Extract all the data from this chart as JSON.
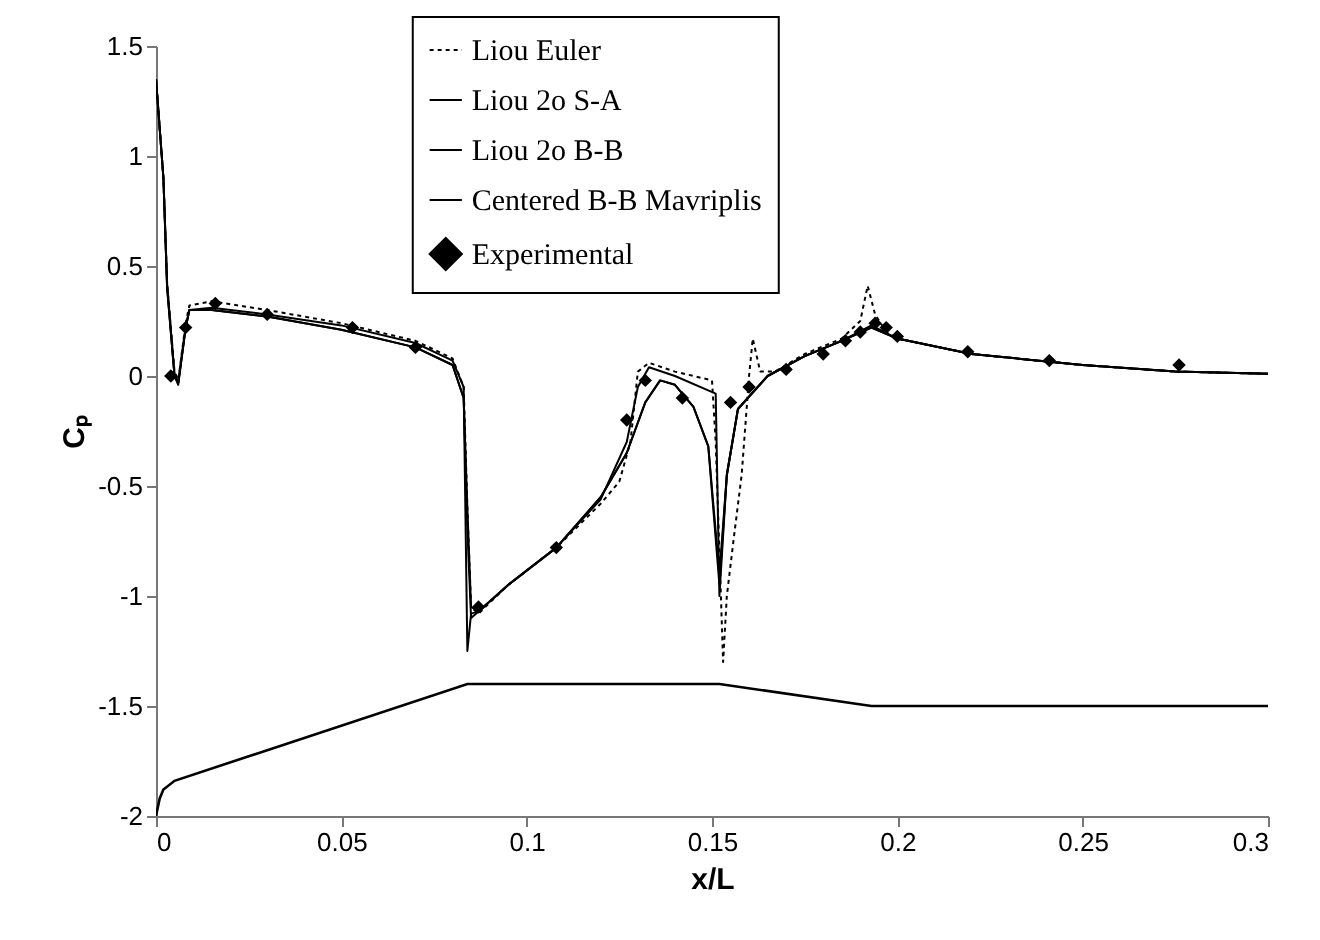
{
  "chart_data": {
    "type": "line",
    "xlabel": "x/L",
    "ylabel": "Cₚ",
    "xlim": [
      0,
      0.3
    ],
    "ylim": [
      -2,
      1.5
    ],
    "xticks": [
      0,
      0.05,
      0.1,
      0.15,
      0.2,
      0.25,
      0.3
    ],
    "yticks": [
      -2,
      -1.5,
      -1,
      -0.5,
      0,
      0.5,
      1,
      1.5
    ],
    "legend": "top",
    "grid": false,
    "series": [
      {
        "name": "Liou Euler",
        "color": "#000000",
        "type": "line",
        "line_style": "dotted",
        "x": [
          0,
          0.002,
          0.003,
          0.005,
          0.006,
          0.008,
          0.009,
          0.015,
          0.03,
          0.05,
          0.07,
          0.08,
          0.083,
          0.084,
          0.085,
          0.087,
          0.095,
          0.108,
          0.12,
          0.125,
          0.128,
          0.13,
          0.133,
          0.14,
          0.15,
          0.151,
          0.153,
          0.154,
          0.156,
          0.158,
          0.16,
          0.161,
          0.163,
          0.167,
          0.175,
          0.185,
          0.19,
          0.192,
          0.194,
          0.197,
          0.2,
          0.22,
          0.25,
          0.275,
          0.3
        ],
        "values": [
          1.35,
          0.9,
          0.42,
          0.02,
          -0.02,
          0.24,
          0.32,
          0.34,
          0.3,
          0.24,
          0.16,
          0.08,
          -0.05,
          -0.6,
          -1.05,
          -1.08,
          -0.95,
          -0.78,
          -0.58,
          -0.48,
          -0.3,
          0.02,
          0.06,
          0.02,
          -0.02,
          -0.3,
          -1.3,
          -1.0,
          -0.72,
          -0.45,
          0.0,
          0.17,
          0.02,
          0.02,
          0.1,
          0.17,
          0.25,
          0.41,
          0.28,
          0.2,
          0.17,
          0.1,
          0.05,
          0.02,
          0.01
        ]
      },
      {
        "name": "Liou 2o S-A",
        "color": "#000000",
        "type": "line",
        "x": [
          0,
          0.002,
          0.003,
          0.005,
          0.006,
          0.008,
          0.009,
          0.015,
          0.03,
          0.05,
          0.07,
          0.08,
          0.083,
          0.084,
          0.085,
          0.087,
          0.095,
          0.108,
          0.12,
          0.127,
          0.13,
          0.133,
          0.14,
          0.151,
          0.152,
          0.154,
          0.157,
          0.165,
          0.175,
          0.185,
          0.193,
          0.2,
          0.22,
          0.25,
          0.275,
          0.3
        ],
        "values": [
          1.35,
          0.9,
          0.42,
          0.0,
          -0.03,
          0.22,
          0.3,
          0.31,
          0.28,
          0.23,
          0.15,
          0.07,
          -0.05,
          -1.25,
          -1.08,
          -1.07,
          -0.95,
          -0.78,
          -0.56,
          -0.3,
          -0.05,
          0.04,
          0.0,
          -0.08,
          -1.0,
          -0.45,
          -0.15,
          0.0,
          0.09,
          0.16,
          0.23,
          0.17,
          0.1,
          0.05,
          0.02,
          0.01
        ]
      },
      {
        "name": "Liou 2o B-B",
        "color": "#000000",
        "type": "line",
        "x": [
          0,
          0.002,
          0.003,
          0.005,
          0.006,
          0.008,
          0.009,
          0.015,
          0.03,
          0.05,
          0.07,
          0.08,
          0.083,
          0.084,
          0.085,
          0.087,
          0.095,
          0.108,
          0.12,
          0.127,
          0.132,
          0.136,
          0.14,
          0.145,
          0.149,
          0.152,
          0.154,
          0.157,
          0.165,
          0.175,
          0.185,
          0.193,
          0.2,
          0.22,
          0.25,
          0.275,
          0.3
        ],
        "values": [
          1.35,
          0.9,
          0.4,
          0.0,
          -0.04,
          0.22,
          0.3,
          0.3,
          0.27,
          0.21,
          0.13,
          0.05,
          -0.1,
          -0.7,
          -1.1,
          -1.07,
          -0.95,
          -0.78,
          -0.55,
          -0.35,
          -0.12,
          -0.02,
          -0.04,
          -0.14,
          -0.32,
          -0.95,
          -0.45,
          -0.15,
          0.0,
          0.09,
          0.16,
          0.22,
          0.17,
          0.1,
          0.05,
          0.02,
          0.01
        ]
      },
      {
        "name": "Centered B-B Mavriplis",
        "color": "#000000",
        "type": "line",
        "x": [
          0,
          0.002,
          0.003,
          0.005,
          0.006,
          0.008,
          0.009,
          0.015,
          0.03,
          0.05,
          0.07,
          0.08,
          0.083,
          0.084,
          0.085,
          0.087,
          0.095,
          0.108,
          0.12,
          0.127,
          0.132,
          0.136,
          0.14,
          0.145,
          0.149,
          0.152,
          0.154,
          0.157,
          0.165,
          0.175,
          0.185,
          0.193,
          0.2,
          0.22,
          0.25,
          0.275,
          0.3
        ],
        "values": [
          1.35,
          0.9,
          0.4,
          0.0,
          -0.03,
          0.22,
          0.3,
          0.3,
          0.27,
          0.21,
          0.13,
          0.05,
          -0.1,
          -0.6,
          -1.05,
          -1.07,
          -0.95,
          -0.78,
          -0.55,
          -0.35,
          -0.12,
          -0.02,
          -0.04,
          -0.14,
          -0.32,
          -0.9,
          -0.45,
          -0.15,
          0.0,
          0.09,
          0.16,
          0.22,
          0.17,
          0.1,
          0.05,
          0.02,
          0.01
        ]
      },
      {
        "name": "Experimental",
        "color": "#000000",
        "type": "scatter",
        "marker": "diamond",
        "x": [
          0.004,
          0.008,
          0.016,
          0.03,
          0.053,
          0.07,
          0.087,
          0.108,
          0.127,
          0.132,
          0.142,
          0.155,
          0.16,
          0.17,
          0.18,
          0.186,
          0.19,
          0.194,
          0.197,
          0.2,
          0.219,
          0.241,
          0.276
        ],
        "values": [
          0.0,
          0.22,
          0.33,
          0.28,
          0.22,
          0.13,
          -1.05,
          -0.78,
          -0.2,
          -0.02,
          -0.1,
          -0.12,
          -0.05,
          0.03,
          0.1,
          0.16,
          0.2,
          0.24,
          0.22,
          0.18,
          0.11,
          0.07,
          0.05
        ]
      },
      {
        "color": "#000000",
        "x": [
          0,
          0.001,
          0.002,
          0.005,
          0.084,
          0.152,
          0.193,
          0.3
        ],
        "values": [
          -2,
          -1.92,
          -1.88,
          -1.84,
          -1.4,
          -1.4,
          -1.5,
          -1.5
        ]
      }
    ]
  }
}
